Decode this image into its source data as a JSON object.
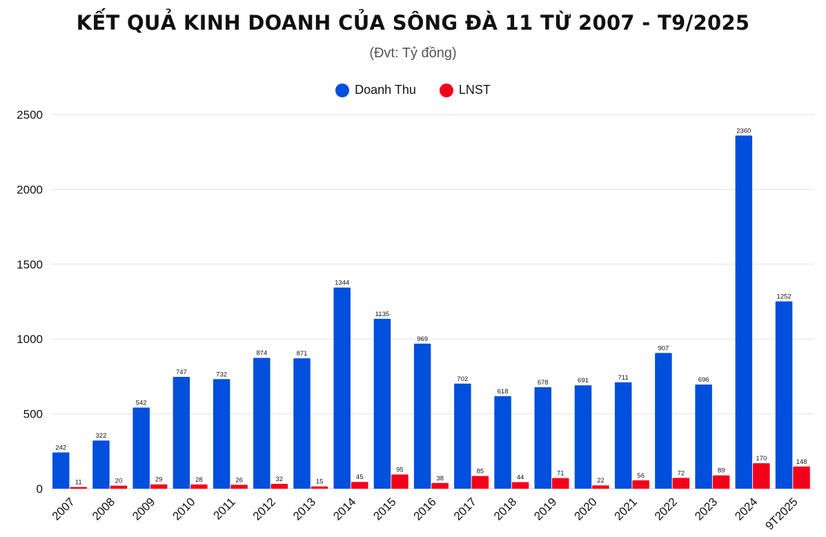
{
  "chart_data": {
    "type": "bar",
    "title": "KẾT QUẢ KINH DOANH CỦA SÔNG ĐÀ 11 TỪ 2007 - T9/2025",
    "subtitle": "(Đvt: Tỷ đồng)",
    "xlabel": "",
    "ylabel": "",
    "ylim": [
      0,
      2500
    ],
    "yticks": [
      0,
      500,
      1000,
      1500,
      2000,
      2500
    ],
    "grid": true,
    "legend_placement": "top-center",
    "categories": [
      "2007",
      "2008",
      "2009",
      "2010",
      "2011",
      "2012",
      "2013",
      "2014",
      "2015",
      "2016",
      "2017",
      "2018",
      "2019",
      "2020",
      "2021",
      "2022",
      "2023",
      "2024",
      "9T2025"
    ],
    "series": [
      {
        "name": "Doanh Thu",
        "color": "#004fdd",
        "values": [
          242,
          322,
          542,
          747,
          732,
          874,
          871,
          1344,
          1135,
          969,
          702,
          618,
          678,
          691,
          711,
          907,
          696,
          2360,
          1252
        ]
      },
      {
        "name": "LNST",
        "color": "#f5001a",
        "values": [
          11,
          20,
          29,
          28,
          26,
          32,
          15,
          45,
          95,
          38,
          85,
          44,
          71,
          22,
          56,
          72,
          89,
          170,
          148
        ]
      }
    ]
  }
}
